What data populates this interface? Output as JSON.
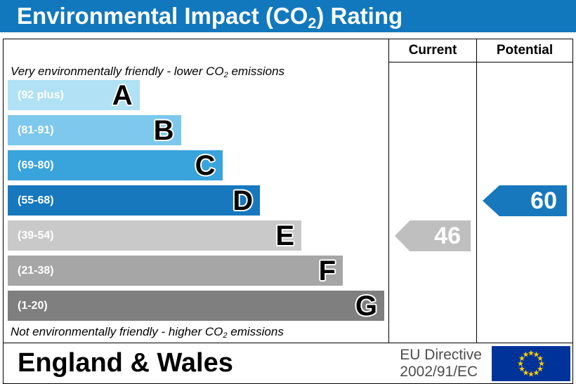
{
  "title": {
    "pre": "Environmental Impact (CO",
    "sub": "2",
    "post": ") Rating"
  },
  "header": {
    "current": "Current",
    "potential": "Potential"
  },
  "notes": {
    "top": {
      "pre": "Very environmentally friendly - lower CO",
      "sub": "2",
      "post": " emissions"
    },
    "bottom": {
      "pre": "Not environmentally friendly - higher CO",
      "sub": "2",
      "post": " emissions"
    }
  },
  "chart_data": {
    "type": "bar",
    "title": "Environmental Impact (CO2) Rating",
    "bands": [
      {
        "letter": "A",
        "range": "(92 plus)",
        "min": 92,
        "max": 100,
        "color": "#b0e1f5",
        "width_pct": 35
      },
      {
        "letter": "B",
        "range": "(81-91)",
        "min": 81,
        "max": 91,
        "color": "#7dc8ec",
        "width_pct": 46
      },
      {
        "letter": "C",
        "range": "(69-80)",
        "min": 69,
        "max": 80,
        "color": "#39a3dc",
        "width_pct": 57
      },
      {
        "letter": "D",
        "range": "(55-68)",
        "min": 55,
        "max": 68,
        "color": "#1778be",
        "width_pct": 67
      },
      {
        "letter": "E",
        "range": "(39-54)",
        "min": 39,
        "max": 54,
        "color": "#c9c9c9",
        "width_pct": 78
      },
      {
        "letter": "F",
        "range": "(21-38)",
        "min": 21,
        "max": 38,
        "color": "#a6a6a6",
        "width_pct": 89
      },
      {
        "letter": "G",
        "range": "(1-20)",
        "min": 1,
        "max": 20,
        "color": "#7f7f7f",
        "width_pct": 100
      }
    ],
    "current": {
      "value": 46,
      "band": "E",
      "color": "#bfbfbf"
    },
    "potential": {
      "value": 60,
      "band": "D",
      "color": "#1778be"
    }
  },
  "footer": {
    "region": "England & Wales",
    "directive": [
      "EU Directive",
      "2002/91/EC"
    ],
    "flag_icon": "eu-flag"
  },
  "colors": {
    "title_bg": "#1278bd",
    "eu_flag_blue": "#003399",
    "eu_flag_star": "#ffcc00"
  }
}
